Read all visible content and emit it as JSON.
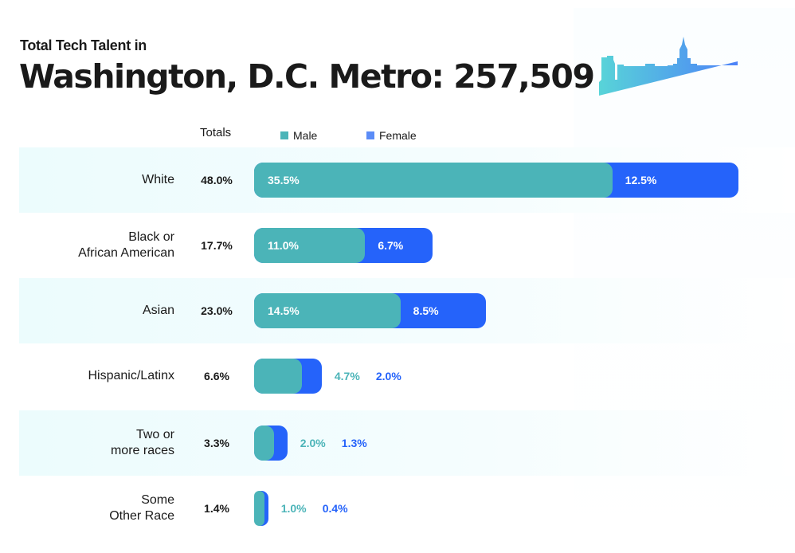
{
  "chart_data": {
    "type": "bar",
    "orientation": "horizontal",
    "stacked": true,
    "subtitle": "Total Tech Talent in",
    "title": "Washington, D.C. Metro: 257,509",
    "totals_header": "Totals",
    "categories": [
      "White",
      "Black or\nAfrican American",
      "Asian",
      "Hispanic/Latinx",
      "Two or\nmore races",
      "Some\nOther Race"
    ],
    "totals": [
      "48.0%",
      "17.7%",
      "23.0%",
      "6.6%",
      "3.3%",
      "1.4%"
    ],
    "series": [
      {
        "name": "Male",
        "color": "#4bb4b8",
        "values": [
          35.5,
          11.0,
          14.5,
          4.7,
          2.0,
          1.0
        ]
      },
      {
        "name": "Female",
        "color": "#2563fa",
        "values": [
          12.5,
          6.7,
          8.5,
          2.0,
          1.3,
          0.4
        ]
      }
    ],
    "legend": "top",
    "grid": false
  },
  "icon": "dc-skyline-icon"
}
